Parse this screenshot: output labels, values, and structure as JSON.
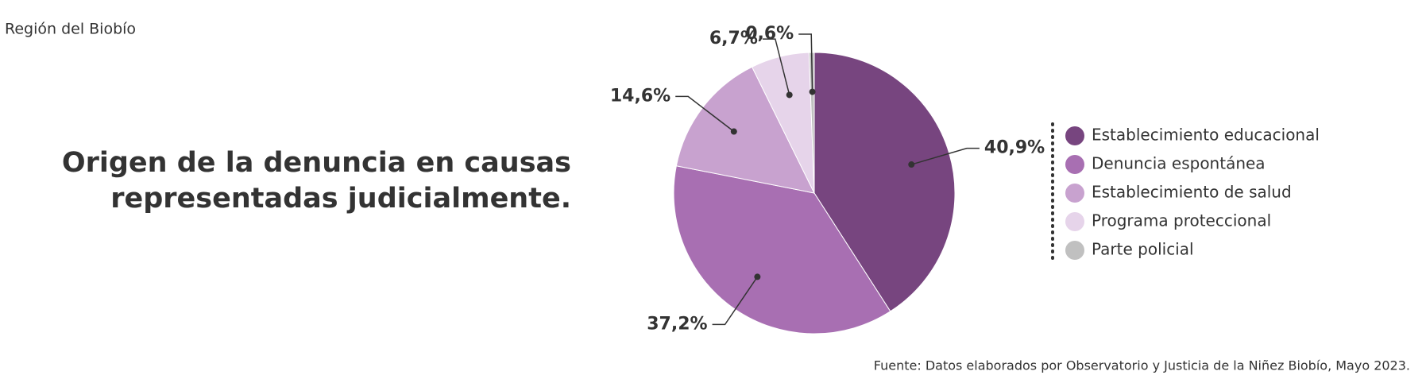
{
  "chart_data": {
    "type": "pie",
    "subtitle": "Región del Biobío",
    "title": [
      "Origen de la denuncia en causas",
      "representadas judicialmente."
    ],
    "categories": [
      "Establecimiento educacional",
      "Denuncia espontánea",
      "Establecimiento de salud",
      "Programa proteccional",
      "Parte policial"
    ],
    "values": [
      40.9,
      37.2,
      14.6,
      6.7,
      0.6
    ],
    "value_labels": [
      "40,9%",
      "37,2%",
      "14,6%",
      "6,7%",
      "0,6%"
    ],
    "colors": [
      "#77457f",
      "#a86fb2",
      "#c8a2cf",
      "#e6d4ea",
      "#c0c0c0"
    ],
    "source": "Fuente: Datos elaborados por Observatorio y Justicia de la Niñez Biobío, Mayo 2023."
  }
}
